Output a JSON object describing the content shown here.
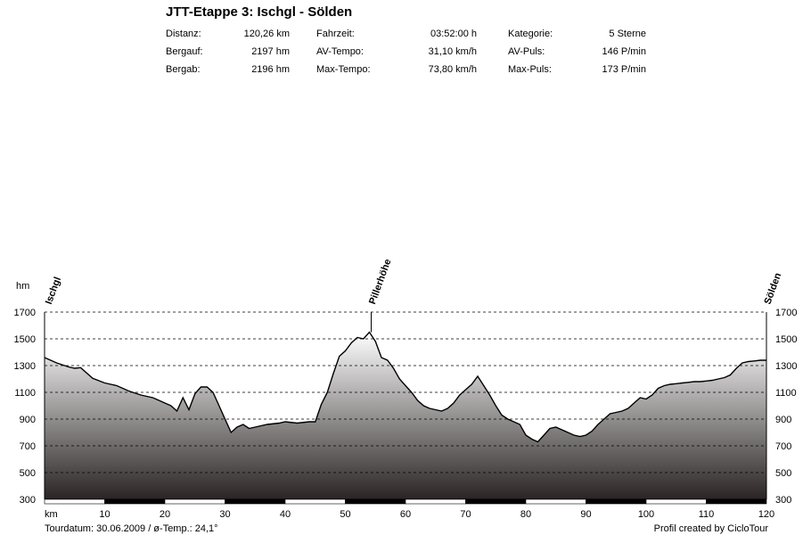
{
  "title": "JTT-Etappe 3: Ischgl - Sölden",
  "stats": [
    [
      {
        "label": "Distanz:",
        "value": "120,26 km"
      },
      {
        "label": "Fahrzeit:",
        "value": "03:52:00 h"
      },
      {
        "label": "Kategorie:",
        "value": "5 Sterne"
      }
    ],
    [
      {
        "label": "Bergauf:",
        "value": "2197 hm"
      },
      {
        "label": "AV-Tempo:",
        "value": "31,10 km/h"
      },
      {
        "label": "AV-Puls:",
        "value": "146 P/min"
      }
    ],
    [
      {
        "label": "Bergab:",
        "value": "2196 hm"
      },
      {
        "label": "Max-Tempo:",
        "value": "73,80 km/h"
      },
      {
        "label": "Max-Puls:",
        "value": "173 P/min"
      }
    ]
  ],
  "footer": {
    "left": "Tourdatum: 30.06.2009  /  ø-Temp.: 24,1°",
    "right": "Profil created by CicloTour"
  },
  "chart_data": {
    "type": "area",
    "ylabel": "hm",
    "xlabel": "km",
    "xlim": [
      0,
      120
    ],
    "ylim": [
      300,
      1700
    ],
    "xticks": [
      10,
      20,
      30,
      40,
      50,
      60,
      70,
      80,
      90,
      100,
      110,
      120
    ],
    "yticks": [
      300,
      500,
      700,
      900,
      1100,
      1300,
      1500,
      1700
    ],
    "grid": "horizontal-dashed",
    "colors": {
      "fill_top": "#ffffff",
      "fill_bottom": "#2a2424",
      "line": "#000000",
      "grid": "#000000"
    },
    "waypoints": [
      {
        "name": "Ischgl",
        "x": 0.5,
        "y": 1360
      },
      {
        "name": "Pillerhöhe",
        "x": 54.3,
        "y": 1550
      },
      {
        "name": "Sölden",
        "x": 120,
        "y": 1340
      }
    ],
    "x": [
      0,
      2,
      4,
      5,
      6,
      8,
      10,
      12,
      14,
      16,
      18,
      19,
      20,
      21,
      22,
      23,
      24,
      25,
      26,
      27,
      28,
      29,
      30,
      31,
      32,
      33,
      34,
      35,
      37,
      39,
      40,
      42,
      44,
      45,
      46,
      47,
      48,
      49,
      50,
      51,
      52,
      53,
      54,
      55,
      56,
      57,
      58,
      59,
      60,
      61,
      62,
      63,
      64,
      65,
      66,
      67,
      68,
      69,
      70,
      71,
      72,
      73,
      74,
      75,
      76,
      77,
      78,
      79,
      80,
      81,
      82,
      83,
      84,
      85,
      86,
      87,
      88,
      89,
      90,
      91,
      92,
      93,
      94,
      95,
      96,
      97,
      98,
      99,
      100,
      101,
      102,
      103,
      104,
      105,
      106,
      107,
      108,
      109,
      110,
      111,
      112,
      113,
      114,
      115,
      116,
      117,
      118,
      119,
      120
    ],
    "y": [
      1360,
      1320,
      1290,
      1280,
      1285,
      1205,
      1170,
      1150,
      1110,
      1080,
      1060,
      1040,
      1020,
      1000,
      960,
      1060,
      970,
      1090,
      1140,
      1140,
      1100,
      1000,
      900,
      800,
      840,
      860,
      830,
      840,
      860,
      870,
      880,
      870,
      880,
      880,
      1010,
      1100,
      1240,
      1370,
      1410,
      1470,
      1510,
      1500,
      1550,
      1480,
      1360,
      1340,
      1280,
      1200,
      1150,
      1100,
      1040,
      1000,
      980,
      970,
      960,
      980,
      1020,
      1080,
      1120,
      1160,
      1220,
      1150,
      1080,
      1000,
      930,
      900,
      880,
      860,
      780,
      750,
      730,
      780,
      830,
      840,
      820,
      800,
      780,
      770,
      780,
      810,
      860,
      900,
      940,
      950,
      960,
      980,
      1020,
      1060,
      1050,
      1080,
      1130,
      1150,
      1160,
      1165,
      1170,
      1175,
      1180,
      1180,
      1185,
      1190,
      1200,
      1210,
      1230,
      1280,
      1320,
      1330,
      1335,
      1340,
      1340
    ]
  }
}
